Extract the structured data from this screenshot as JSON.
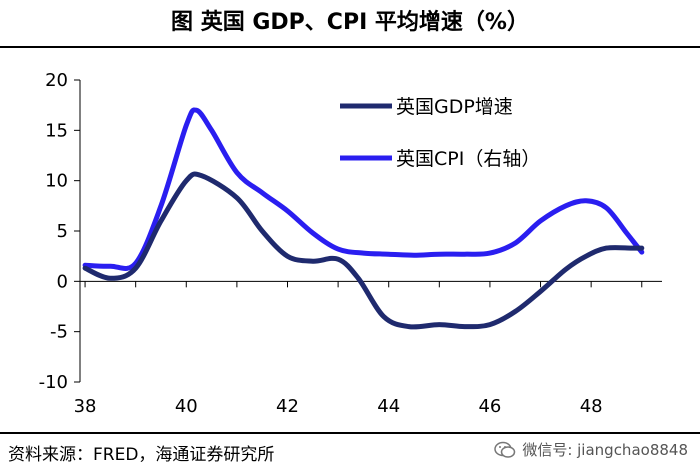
{
  "title": "图 英国 GDP、CPI 平均增速（%）",
  "source": "资料来源：FRED，海通证券研究所",
  "watermark": "微信号: jiangchao8848",
  "watermark_icon": "wechat-icon",
  "chart_data": {
    "type": "line",
    "x_ticks": [
      "38",
      "40",
      "42",
      "44",
      "46",
      "48"
    ],
    "y_ticks": [
      "20",
      "15",
      "10",
      "5",
      "0",
      "-5",
      "-10"
    ],
    "xlim": [
      37.9,
      49.4
    ],
    "ylim": [
      -10,
      20
    ],
    "legend_position": "top-right",
    "grid": false,
    "series": [
      {
        "name": "英国GDP增速",
        "color": "#1f2a6e",
        "x": [
          38.0,
          38.5,
          39.0,
          39.5,
          40.0,
          40.3,
          41.0,
          41.5,
          42.0,
          42.5,
          43.0,
          43.4,
          43.9,
          44.4,
          45.0,
          45.5,
          46.0,
          46.5,
          47.0,
          47.5,
          47.9,
          48.3,
          48.8,
          49.0
        ],
        "y": [
          1.3,
          0.3,
          1.3,
          6.0,
          10.0,
          10.5,
          8.3,
          5.0,
          2.5,
          2.0,
          2.2,
          0.3,
          -3.5,
          -4.5,
          -4.3,
          -4.5,
          -4.3,
          -3.0,
          -1.0,
          1.2,
          2.5,
          3.3,
          3.3,
          3.3
        ]
      },
      {
        "name": "英国CPI（右轴）",
        "color": "#2a1ef0",
        "x": [
          38.0,
          38.5,
          39.0,
          39.5,
          40.0,
          40.2,
          40.5,
          41.0,
          41.5,
          42.0,
          42.5,
          43.0,
          43.5,
          44.0,
          44.5,
          45.0,
          45.5,
          46.0,
          46.5,
          47.0,
          47.5,
          47.9,
          48.3,
          48.7,
          49.0
        ],
        "y": [
          1.6,
          1.5,
          1.8,
          7.5,
          15.5,
          17.0,
          15.0,
          10.8,
          8.8,
          7.0,
          4.8,
          3.2,
          2.8,
          2.7,
          2.6,
          2.7,
          2.7,
          2.8,
          3.8,
          6.0,
          7.5,
          8.0,
          7.3,
          4.8,
          2.9
        ]
      }
    ]
  }
}
